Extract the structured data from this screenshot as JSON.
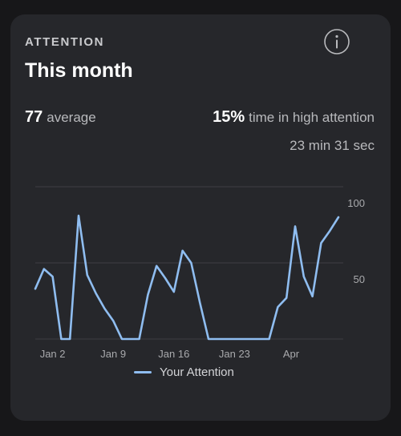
{
  "card": {
    "section_label": "ATTENTION",
    "title": "This month",
    "info_icon": "info-icon"
  },
  "stats": {
    "average_value": "77",
    "average_label": "average",
    "high_percent": "15%",
    "high_label": "time in high attention",
    "high_duration": "23 min 31 sec"
  },
  "chart_data": {
    "type": "line",
    "xlabel": "",
    "ylabel": "",
    "ylim": [
      0,
      100
    ],
    "yticks": [
      50,
      100
    ],
    "x_tick_labels": [
      "Jan 2",
      "Jan 9",
      "Jan 16",
      "Jan 23",
      "Apr"
    ],
    "x_tick_index": [
      2,
      9,
      16,
      23,
      30
    ],
    "grid": true,
    "legend_position": "bottom",
    "series": [
      {
        "name": "Your Attention",
        "color": "#8fbdf0",
        "values": [
          33,
          46,
          41,
          0,
          0,
          81,
          42,
          30,
          20,
          12,
          0,
          0,
          0,
          29,
          48,
          40,
          31,
          58,
          50,
          24,
          0,
          0,
          0,
          0,
          0,
          0,
          0,
          0,
          21,
          27,
          74,
          41,
          28,
          63,
          71,
          80
        ]
      }
    ]
  }
}
